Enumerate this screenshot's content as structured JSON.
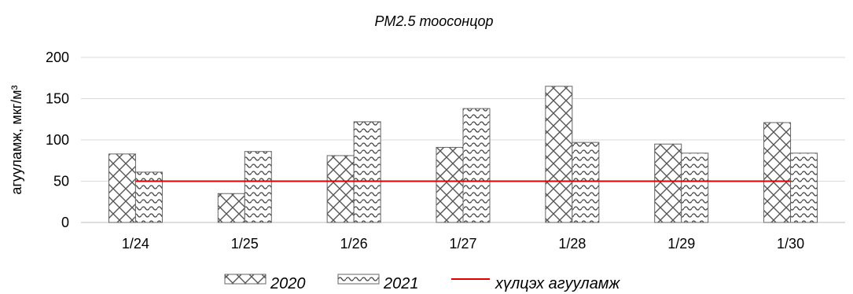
{
  "chart_data": {
    "type": "bar",
    "title": "PM2.5 тоосонцор",
    "ylabel": "агууламж, мкг/м³",
    "xlabel": "",
    "ylim": [
      0,
      200
    ],
    "yticks": [
      "0",
      "50",
      "100",
      "150",
      "200"
    ],
    "categories": [
      "1/24",
      "1/25",
      "1/26",
      "1/27",
      "1/28",
      "1/29",
      "1/30"
    ],
    "series": [
      {
        "name": "2020",
        "values": [
          83,
          35,
          81,
          91,
          165,
          95,
          121
        ],
        "pattern": "crosshatch"
      },
      {
        "name": "2021",
        "values": [
          61,
          86,
          122,
          138,
          97,
          84,
          84
        ],
        "pattern": "wave"
      }
    ],
    "reference_line": {
      "name": "хүлцэх агууламж",
      "value": 50,
      "color": "#e00000"
    },
    "grid": true,
    "legend": "bottom"
  }
}
